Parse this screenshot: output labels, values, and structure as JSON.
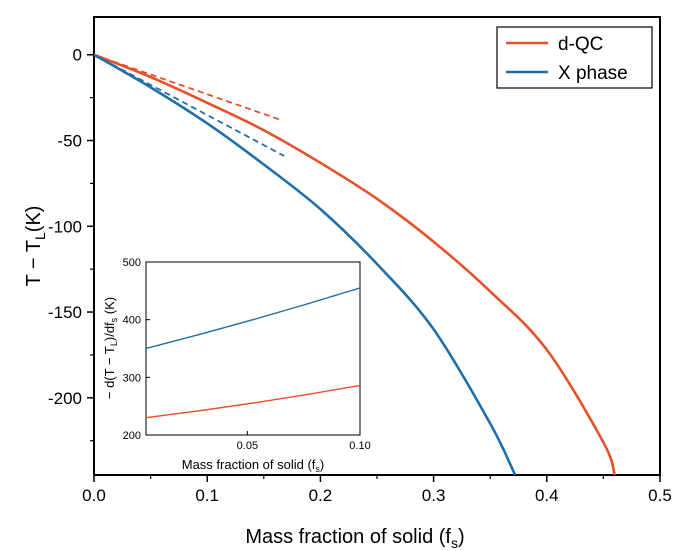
{
  "chart_data": [
    {
      "type": "line",
      "xlabel": "Mass fraction of solid (f",
      "xlabel_sub": "s",
      "xlabel_end": ")",
      "ylabel": "T − T",
      "ylabel_sub": "L",
      "ylabel_end": "(K)",
      "xlim": [
        0,
        0.5
      ],
      "ylim": [
        -245,
        22
      ],
      "x_ticks": [
        "0.0",
        "0.1",
        "0.2",
        "0.3",
        "0.4",
        "0.5"
      ],
      "y_ticks": [
        "0",
        "-50",
        "-100",
        "-150",
        "-200"
      ],
      "legend_position": "top-right",
      "series": [
        {
          "name": "d-QC",
          "color": "#e8502a",
          "x": [
            0,
            0.05,
            0.1,
            0.15,
            0.2,
            0.25,
            0.3,
            0.35,
            0.4,
            0.45,
            0.46
          ],
          "y": [
            0,
            -13,
            -28,
            -44,
            -63,
            -84,
            -109,
            -138,
            -172,
            -226,
            -245
          ]
        },
        {
          "name": "X phase",
          "color": "#1f6fa8",
          "x": [
            0,
            0.05,
            0.1,
            0.15,
            0.2,
            0.25,
            0.3,
            0.35,
            0.372
          ],
          "y": [
            0,
            -19,
            -40,
            -64,
            -90,
            -122,
            -160,
            -215,
            -245
          ]
        }
      ],
      "tangents": [
        {
          "series": "d-QC",
          "color": "#e8502a",
          "x": [
            0,
            0.165
          ],
          "y": [
            0,
            -38
          ]
        },
        {
          "series": "X phase",
          "color": "#1f6fa8",
          "x": [
            0,
            0.168
          ],
          "y": [
            0,
            -59
          ]
        }
      ]
    },
    {
      "type": "line",
      "xlabel": "Mass fraction of solid (f",
      "xlabel_sub": "s",
      "xlabel_end": ")",
      "ylabel_a": "− d(T − T",
      "ylabel_sub1": "L",
      "ylabel_b": ")/df",
      "ylabel_sub2": "s",
      "ylabel_c": " (K)",
      "xlim": [
        0.005,
        0.1
      ],
      "ylim": [
        200,
        500
      ],
      "x_ticks": [
        "0.05",
        "0.10"
      ],
      "y_ticks": [
        "200",
        "300",
        "400",
        "500"
      ],
      "series": [
        {
          "name": "d-QC",
          "color": "#e8502a",
          "x": [
            0.005,
            0.1
          ],
          "y": [
            230,
            286
          ]
        },
        {
          "name": "X phase",
          "color": "#1f6fa8",
          "x": [
            0.005,
            0.1
          ],
          "y": [
            350,
            455
          ]
        }
      ]
    }
  ]
}
